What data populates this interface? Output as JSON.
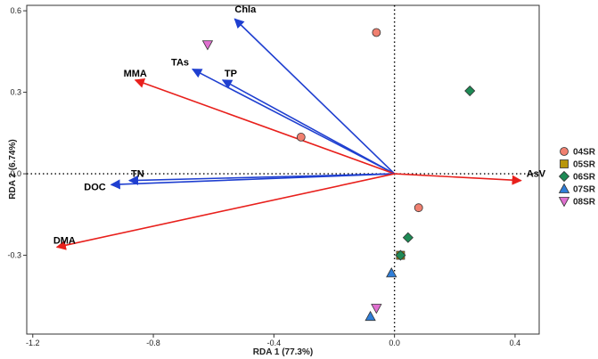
{
  "chart_data": {
    "type": "scatter",
    "subtype": "rda-biplot",
    "xlabel": "RDA 1 (77.3%)",
    "ylabel": "RDA 2 (6.74%)",
    "xlim": [
      -1.22,
      0.48
    ],
    "ylim": [
      -0.59,
      0.62
    ],
    "x_ticks": [
      -1.2,
      -0.8,
      -0.4,
      0.0,
      0.4
    ],
    "x_tick_labels": [
      "-1.2",
      "-0.8",
      "-0.4",
      "0.0",
      "0.4"
    ],
    "y_ticks": [
      -0.3,
      0.0,
      0.3,
      0.6
    ],
    "y_tick_labels": [
      "-0.3",
      "0.0",
      "0.3",
      "0.6"
    ],
    "grid": false,
    "legend_position": "right",
    "arrows": [
      {
        "label": "Chla",
        "x": -0.53,
        "y": 0.57,
        "color": "#1f3fd0"
      },
      {
        "label": "TAs",
        "x": -0.67,
        "y": 0.385,
        "color": "#1f3fd0"
      },
      {
        "label": "TP",
        "x": -0.57,
        "y": 0.345,
        "color": "#1f3fd0"
      },
      {
        "label": "MMA",
        "x": -0.86,
        "y": 0.345,
        "color": "#e8201c"
      },
      {
        "label": "TN",
        "x": -0.88,
        "y": -0.025,
        "color": "#1f3fd0"
      },
      {
        "label": "DOC",
        "x": -0.94,
        "y": -0.04,
        "color": "#1f3fd0"
      },
      {
        "label": "DMA",
        "x": -1.12,
        "y": -0.27,
        "color": "#e8201c"
      },
      {
        "label": "AsV",
        "x": 0.42,
        "y": -0.025,
        "color": "#e8201c"
      }
    ],
    "series": [
      {
        "name": "04SR",
        "marker": "circle",
        "color": "#f08070",
        "x": [
          -0.06,
          -0.31,
          0.08
        ],
        "y": [
          0.52,
          0.135,
          -0.125
        ]
      },
      {
        "name": "05SR",
        "marker": "square",
        "color": "#b8960a",
        "x": [
          0.02
        ],
        "y": [
          -0.3
        ]
      },
      {
        "name": "06SR",
        "marker": "diamond",
        "color": "#1e8a55",
        "x": [
          0.25,
          0.045,
          0.02
        ],
        "y": [
          0.305,
          -0.235,
          -0.3
        ]
      },
      {
        "name": "07SR",
        "marker": "triangle-up",
        "color": "#2f7ed8",
        "x": [
          -0.01,
          -0.08
        ],
        "y": [
          -0.365,
          -0.525
        ]
      },
      {
        "name": "08SR",
        "marker": "triangle-down",
        "color": "#e070d0",
        "x": [
          -0.62,
          -0.06
        ],
        "y": [
          0.475,
          -0.495
        ]
      }
    ]
  }
}
